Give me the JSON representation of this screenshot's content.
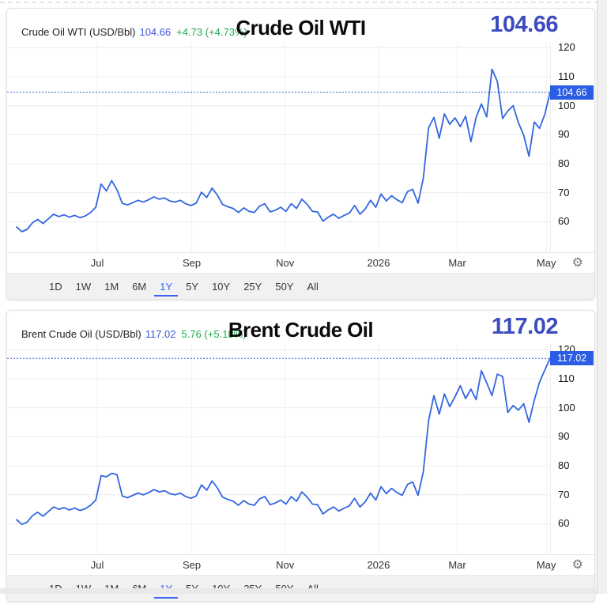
{
  "colors": {
    "line_blue": "#3366E0",
    "badge_blue": "#2A5CE4",
    "big_price_indigo": "#3D4BC0",
    "header_price_blue": "#3C55D9",
    "change_green": "#1FA94F",
    "active_range_blue": "#3B62F2"
  },
  "icons": {
    "settings_gear": "⚙"
  },
  "timebar": {
    "buttons": [
      "1D",
      "1W",
      "1M",
      "6M",
      "1Y",
      "5Y",
      "10Y",
      "25Y",
      "50Y",
      "All"
    ],
    "active": "1Y"
  },
  "charts": [
    {
      "header": {
        "instrument": "Crude Oil WTI (USD/Bbl)",
        "price": "104.66",
        "change": "+4.73 (+4.73%)",
        "title": "Crude Oil WTI",
        "big_price": "104.66"
      }
    },
    {
      "header": {
        "instrument": "Brent Crude Oil (USD/Bbl)",
        "price": "117.02",
        "change": "5.76 (+5.18%)",
        "title": "Brent Crude Oil",
        "big_price": "117.02"
      }
    }
  ],
  "chart_data": [
    {
      "type": "line",
      "title": "Crude Oil WTI",
      "series_name": "Crude Oil WTI (USD/Bbl)",
      "unit": "USD/Bbl",
      "last_price": 104.66,
      "last_price_label": "104.66",
      "change": "+4.73 (+4.73%)",
      "x_ticks": [
        "Jul",
        "Sep",
        "Nov",
        "2026",
        "Mar",
        "May"
      ],
      "x_tick_pos": [
        0.166,
        0.34,
        0.512,
        0.684,
        0.829,
        0.993
      ],
      "y_ticks": [
        60,
        70,
        80,
        90,
        100,
        110,
        120
      ],
      "ylim": [
        49.5,
        122
      ],
      "grid": true,
      "legend": false,
      "values": [
        58.2,
        56.6,
        57.4,
        59.6,
        60.8,
        59.4,
        61.0,
        62.6,
        61.8,
        62.4,
        61.6,
        62.2,
        61.4,
        62.0,
        63.2,
        65.0,
        73.0,
        70.6,
        74.2,
        71.0,
        66.4,
        65.8,
        66.6,
        67.4,
        66.8,
        67.6,
        68.6,
        67.8,
        68.2,
        67.2,
        66.8,
        67.4,
        66.2,
        65.6,
        66.4,
        70.2,
        68.4,
        71.6,
        69.2,
        66.0,
        65.2,
        64.6,
        63.2,
        64.8,
        63.6,
        63.2,
        65.4,
        66.2,
        63.4,
        64.0,
        65.0,
        63.6,
        66.2,
        64.6,
        67.8,
        66.0,
        63.6,
        63.4,
        60.2,
        61.6,
        62.6,
        61.2,
        62.2,
        63.0,
        65.6,
        62.6,
        64.4,
        67.4,
        65.0,
        69.6,
        67.2,
        69.0,
        67.6,
        66.6,
        70.4,
        71.2,
        66.4,
        75.0,
        92.4,
        96.0,
        88.8,
        97.2,
        93.6,
        95.8,
        92.8,
        96.4,
        87.6,
        96.0,
        100.6,
        96.2,
        112.6,
        108.4,
        95.6,
        98.2,
        100.0,
        94.2,
        89.8,
        82.6,
        94.4,
        92.2,
        97.0,
        104.66
      ]
    },
    {
      "type": "line",
      "title": "Brent Crude Oil",
      "series_name": "Brent Crude Oil (USD/Bbl)",
      "unit": "USD/Bbl",
      "last_price": 117.02,
      "last_price_label": "117.02",
      "change": "5.76 (+5.18%)",
      "x_ticks": [
        "Jul",
        "Sep",
        "Nov",
        "2026",
        "Mar",
        "May"
      ],
      "x_tick_pos": [
        0.166,
        0.34,
        0.512,
        0.684,
        0.829,
        0.993
      ],
      "y_ticks": [
        60,
        70,
        80,
        90,
        100,
        110,
        120
      ],
      "ylim": [
        49.5,
        122
      ],
      "grid": true,
      "legend": false,
      "values": [
        61.4,
        59.8,
        60.6,
        62.8,
        64.0,
        62.6,
        64.2,
        65.8,
        65.0,
        65.6,
        64.8,
        65.4,
        64.6,
        65.2,
        66.4,
        68.2,
        76.6,
        76.2,
        77.4,
        77.0,
        69.6,
        69.0,
        69.8,
        70.6,
        70.0,
        70.8,
        71.8,
        71.0,
        71.4,
        70.4,
        70.0,
        70.6,
        69.4,
        68.8,
        69.6,
        73.4,
        71.6,
        74.8,
        72.4,
        69.2,
        68.4,
        67.8,
        66.4,
        68.0,
        66.8,
        66.4,
        68.6,
        69.4,
        66.6,
        67.2,
        68.2,
        66.8,
        69.4,
        67.8,
        71.0,
        69.2,
        66.8,
        66.6,
        63.4,
        64.8,
        65.8,
        64.4,
        65.4,
        66.2,
        68.8,
        65.8,
        67.6,
        70.6,
        68.2,
        72.8,
        70.4,
        72.2,
        70.8,
        69.8,
        73.6,
        74.4,
        69.8,
        78.0,
        95.6,
        104.2,
        97.8,
        104.8,
        100.4,
        103.8,
        107.6,
        103.2,
        106.4,
        102.8,
        112.8,
        108.6,
        104.2,
        111.6,
        110.8,
        98.4,
        100.8,
        99.2,
        101.4,
        95.0,
        102.6,
        108.8,
        113.0,
        117.02
      ]
    }
  ]
}
